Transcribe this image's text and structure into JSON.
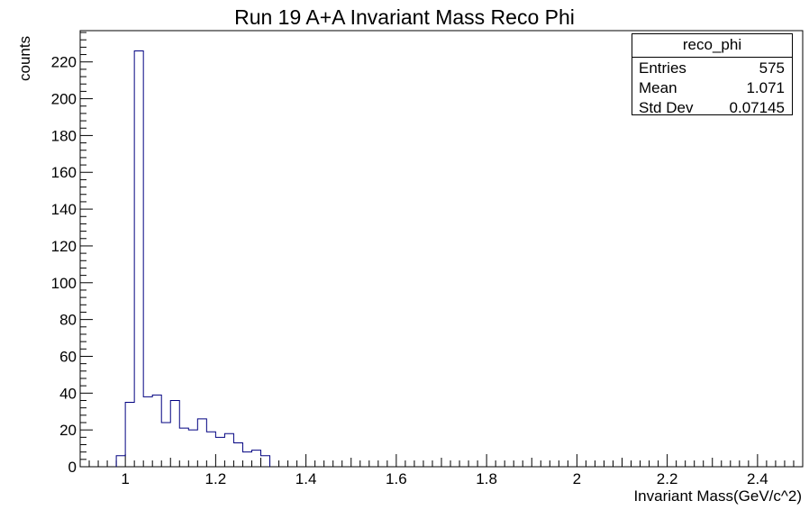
{
  "chart_data": {
    "type": "bar",
    "title": "Run 19 A+A Invariant Mass Reco Phi",
    "xlabel": "Invariant Mass(GeV/c^2)",
    "ylabel": "counts",
    "xlim": [
      0.9,
      2.5
    ],
    "ylim": [
      0,
      237
    ],
    "x_ticks": [
      1,
      1.2,
      1.4,
      1.6,
      1.8,
      2,
      2.2,
      2.4
    ],
    "x_tick_labels": [
      "1",
      "1.2",
      "1.4",
      "1.6",
      "1.8",
      "2",
      "2.2",
      "2.4"
    ],
    "y_ticks": [
      0,
      20,
      40,
      60,
      80,
      100,
      120,
      140,
      160,
      180,
      200,
      220
    ],
    "y_tick_labels": [
      "0",
      "20",
      "40",
      "60",
      "80",
      "100",
      "120",
      "140",
      "160",
      "180",
      "200",
      "220"
    ],
    "bin_width": 0.02,
    "bin_low_edges": [
      0.98,
      1.0,
      1.02,
      1.04,
      1.06,
      1.08,
      1.1,
      1.12,
      1.14,
      1.16,
      1.18,
      1.2,
      1.22,
      1.24,
      1.26,
      1.28,
      1.3
    ],
    "counts": [
      6,
      35,
      226,
      38,
      39,
      24,
      36,
      21,
      20,
      26,
      19,
      16,
      18,
      13,
      8,
      9,
      6
    ],
    "series_color": "#000080",
    "grid": false,
    "stats_box": {
      "name": "reco_phi",
      "rows": [
        {
          "label": "Entries",
          "value": "575"
        },
        {
          "label": "Mean",
          "value": "1.071"
        },
        {
          "label": "Std Dev",
          "value": "0.07145"
        }
      ]
    }
  }
}
